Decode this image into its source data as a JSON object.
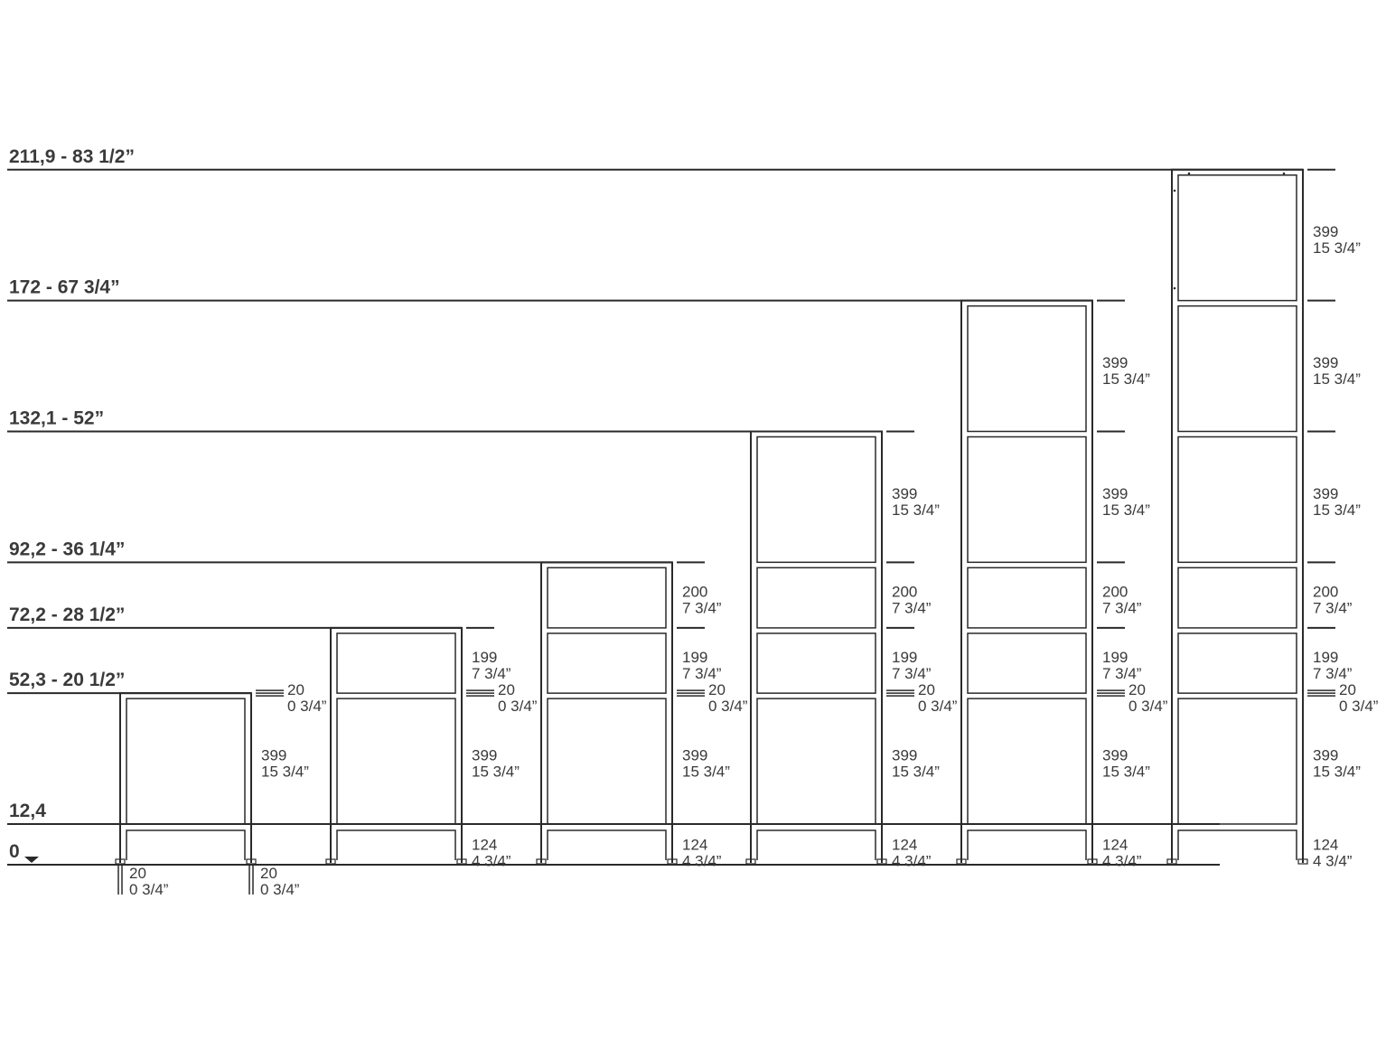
{
  "levels": [
    {
      "label": "211,9 - 83 1/2”",
      "value": 211.9
    },
    {
      "label": "172 - 67 3/4”",
      "value": 172
    },
    {
      "label": "132,1 - 52”",
      "value": 132.1
    },
    {
      "label": "92,2 - 36 1/4”",
      "value": 92.2
    },
    {
      "label": "72,2 - 28 1/2”",
      "value": 72.2
    },
    {
      "label": "52,3 - 20 1/2”",
      "value": 52.3
    },
    {
      "label": "12,4",
      "value": 12.4
    },
    {
      "label": "0",
      "value": 0
    }
  ],
  "ground_marker_icon": "triangle-down-icon",
  "dimensions": {
    "base": [
      "124",
      "4 3/4”"
    ],
    "bar": [
      "20",
      "0 3/4”"
    ],
    "leg": [
      "20",
      "0 3/4”"
    ],
    "s399": [
      "399",
      "15 3/4”"
    ],
    "s199": [
      "199",
      "7 3/4”"
    ],
    "s200": [
      "200",
      "7 3/4”"
    ]
  },
  "section_sequence": [
    "s399",
    "s199",
    "s200",
    "s399",
    "s399",
    "s399"
  ],
  "units": [
    {
      "sections": 1,
      "base_label": false,
      "leg_labels": true
    },
    {
      "sections": 2,
      "base_label": true,
      "leg_labels": false
    },
    {
      "sections": 3,
      "base_label": true,
      "leg_labels": false
    },
    {
      "sections": 4,
      "base_label": true,
      "leg_labels": false
    },
    {
      "sections": 5,
      "base_label": true,
      "leg_labels": false
    },
    {
      "sections": 6,
      "base_label": true,
      "leg_labels": false
    }
  ],
  "colors": {
    "line": "#2a2a2a",
    "text": "#3a3a3a"
  }
}
